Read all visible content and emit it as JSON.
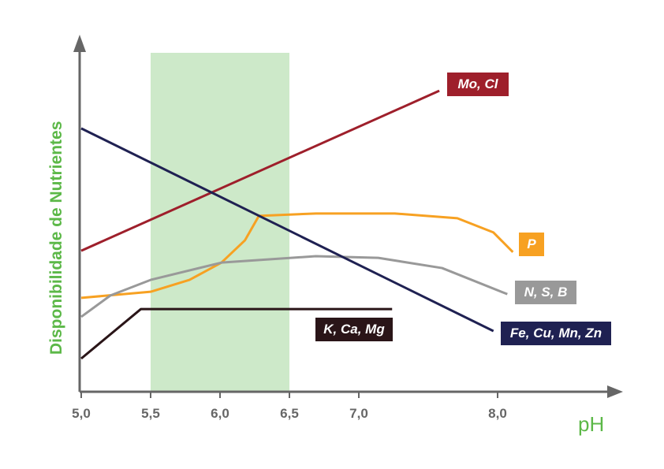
{
  "chart_data": {
    "type": "line",
    "title": "",
    "xlabel": "pH",
    "ylabel": "Disponibilidade de Nutrientes",
    "xlim": [
      5.0,
      8.3
    ],
    "ylim": [
      0,
      100
    ],
    "x_ticks": [
      {
        "value": 5.0,
        "label": "5,0"
      },
      {
        "value": 5.5,
        "label": "5,5"
      },
      {
        "value": 6.0,
        "label": "6,0"
      },
      {
        "value": 6.5,
        "label": "6,5"
      },
      {
        "value": 7.0,
        "label": "7,0"
      },
      {
        "value": 8.0,
        "label": "8,0"
      }
    ],
    "highlight_band": {
      "x_from": 5.5,
      "x_to": 6.5,
      "color": "#cde9c9"
    },
    "grid": false,
    "series": [
      {
        "name": "Mo, Cl",
        "color": "#9e1f2b",
        "points": [
          [
            5.0,
            41.6
          ],
          [
            7.58,
            88.8
          ]
        ]
      },
      {
        "name": "P",
        "color": "#f7a122",
        "points": [
          [
            5.0,
            27.7
          ],
          [
            5.5,
            29.5
          ],
          [
            5.78,
            33
          ],
          [
            6.01,
            38.1
          ],
          [
            6.18,
            44.7
          ],
          [
            6.28,
            51.9
          ],
          [
            6.69,
            52.6
          ],
          [
            7.26,
            52.6
          ],
          [
            7.71,
            51.2
          ],
          [
            7.97,
            47
          ],
          [
            8.11,
            41.2
          ]
        ]
      },
      {
        "name": "N, S, B",
        "color": "#999999",
        "points": [
          [
            5.0,
            22.1
          ],
          [
            5.21,
            28.4
          ],
          [
            5.5,
            33
          ],
          [
            6.01,
            38.1
          ],
          [
            6.69,
            40
          ],
          [
            7.14,
            39.5
          ],
          [
            7.6,
            36.5
          ],
          [
            8.07,
            28.8
          ]
        ]
      },
      {
        "name": "Fe, Cu, Mn, Zn",
        "color": "#1f2152",
        "points": [
          [
            5.0,
            77.7
          ],
          [
            7.97,
            17.9
          ]
        ]
      },
      {
        "name": "K, Ca, Mg",
        "color": "#2a1518",
        "points": [
          [
            5.0,
            9.8
          ],
          [
            5.43,
            24.4
          ],
          [
            7.24,
            24.4
          ]
        ]
      }
    ]
  }
}
